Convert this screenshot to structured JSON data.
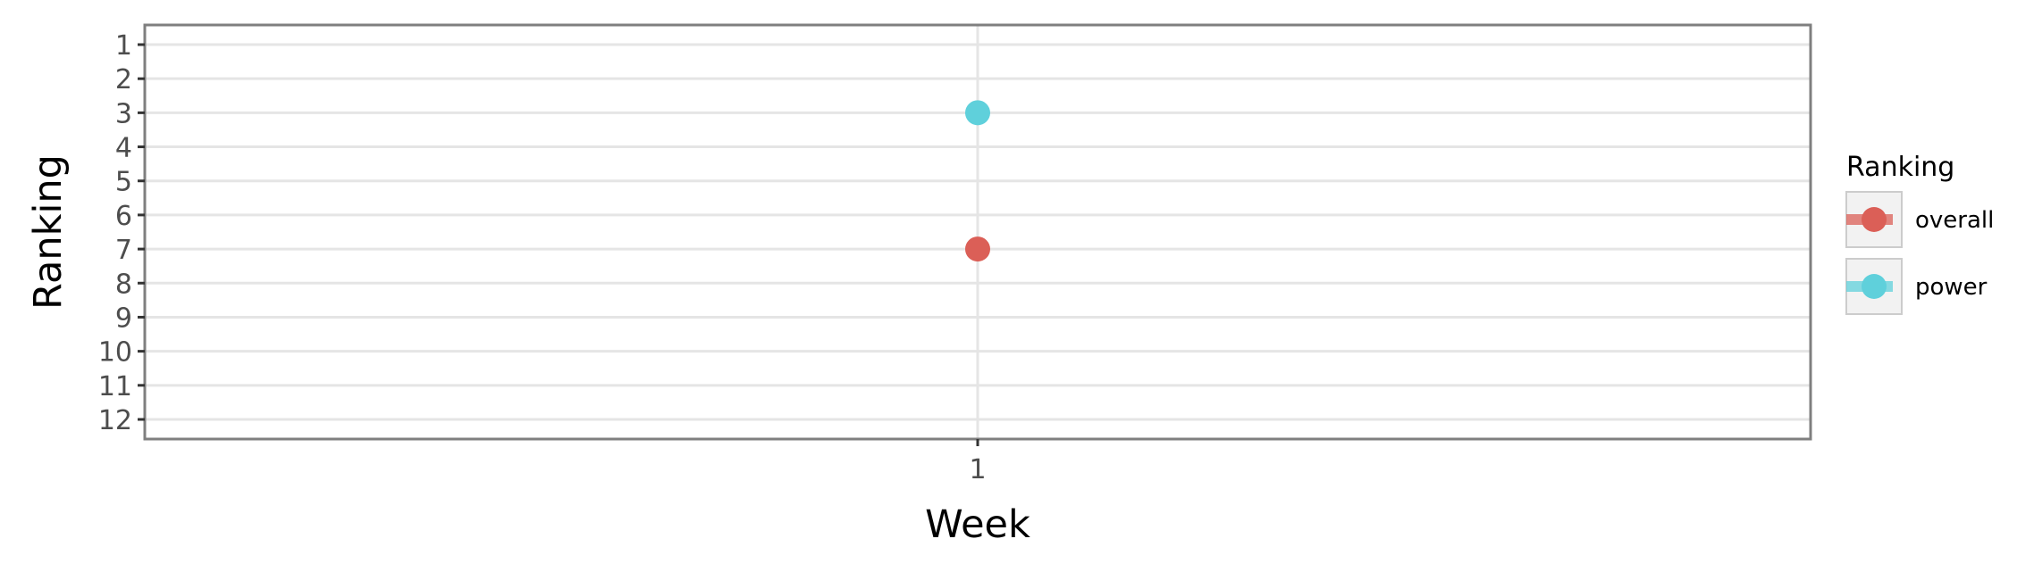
{
  "chart_data": {
    "type": "scatter",
    "xlabel": "Week",
    "ylabel": "Ranking",
    "x_categories": [
      "1"
    ],
    "y_ticks": [
      1,
      2,
      3,
      4,
      5,
      6,
      7,
      8,
      9,
      10,
      11,
      12
    ],
    "ylim": [
      1,
      12
    ],
    "y_reversed": true,
    "grid": true,
    "legend": {
      "title": "Ranking",
      "placement": "right"
    },
    "series": [
      {
        "name": "overall",
        "color": "#db5f57",
        "points": [
          {
            "x": "1",
            "y": 7
          }
        ]
      },
      {
        "name": "power",
        "color": "#5fd0db",
        "points": [
          {
            "x": "1",
            "y": 3
          }
        ]
      }
    ]
  }
}
